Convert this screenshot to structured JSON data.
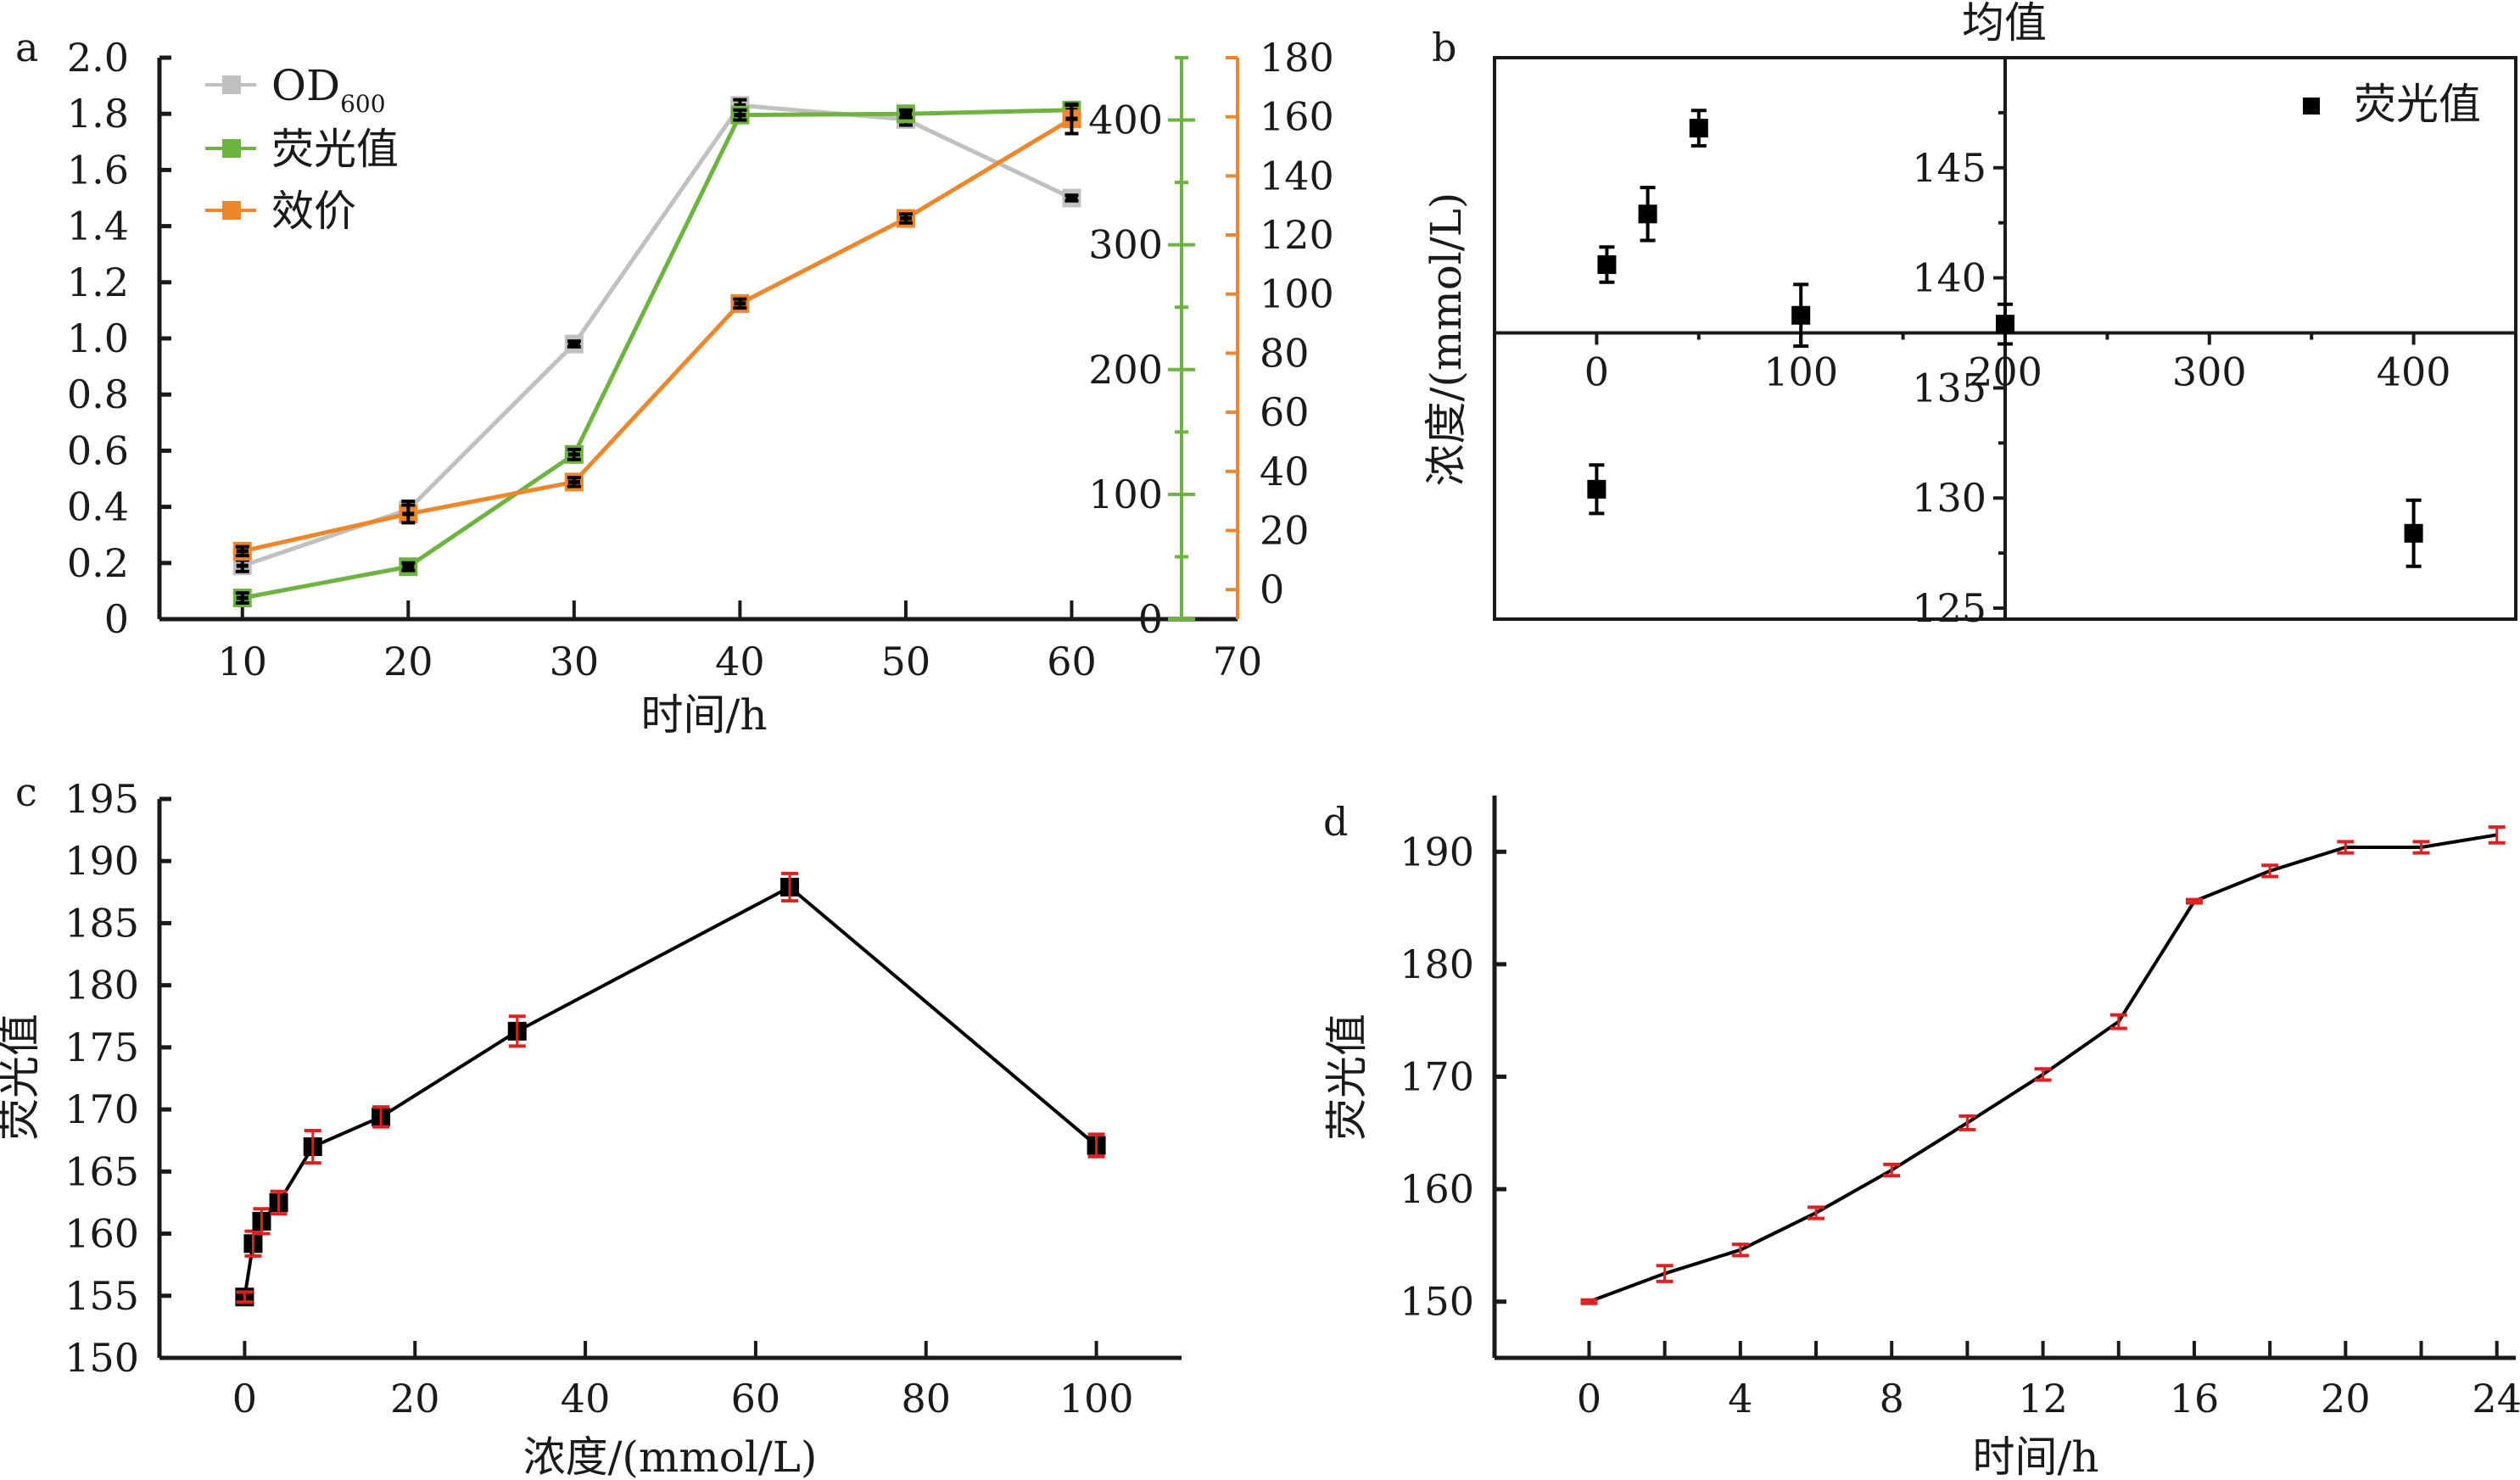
{
  "figure": {
    "panels": [
      "a",
      "b",
      "c",
      "d"
    ]
  },
  "chart_data": [
    {
      "panel": "a",
      "type": "line",
      "title": "",
      "xlabel": "时间/h",
      "x": [
        10,
        20,
        30,
        40,
        50,
        60
      ],
      "xlim": [
        5,
        70
      ],
      "xticks": [
        "10",
        "20",
        "30",
        "40",
        "50",
        "60",
        "70"
      ],
      "grid": false,
      "legend_position": "top-left",
      "axes": {
        "left": {
          "ylim": [
            0,
            2.0
          ],
          "ticks": [
            "0",
            "0.2",
            "0.4",
            "0.6",
            "0.8",
            "1.0",
            "1.2",
            "1.4",
            "1.6",
            "1.8",
            "2.0"
          ],
          "color": "#1a1a1a"
        },
        "right_inner": {
          "ylim": [
            0,
            450
          ],
          "ticks": [
            "0",
            "100",
            "200",
            "300",
            "400"
          ],
          "minor_step": 50,
          "color": "#6db33f"
        },
        "right_outer": {
          "ylim": [
            -10,
            180
          ],
          "ticks": [
            "0",
            "20",
            "40",
            "60",
            "80",
            "100",
            "120",
            "140",
            "160",
            "180"
          ],
          "color": "#f0862a"
        }
      },
      "series": [
        {
          "name": "OD600",
          "name_main": "OD",
          "name_sub": "600",
          "axis": "left",
          "color": "#c0c0c0",
          "values": [
            0.19,
            0.39,
            0.98,
            1.83,
            1.78,
            1.5
          ],
          "errors": [
            0.02,
            0.03,
            0.01,
            0.02,
            0.02,
            0.01
          ]
        },
        {
          "name": "荧光值",
          "axis": "right_inner",
          "color": "#6db33f",
          "values": [
            17,
            42,
            132,
            404,
            405,
            408
          ],
          "errors": [
            4,
            3,
            4,
            4,
            3,
            4
          ]
        },
        {
          "name": "效价",
          "axis": "right_outer",
          "color": "#f0862a",
          "values": [
            13,
            25.6,
            36.4,
            96.8,
            125.6,
            159.3
          ],
          "errors": [
            1.5,
            3,
            1.5,
            1.5,
            1.5,
            5
          ]
        }
      ]
    },
    {
      "panel": "b",
      "type": "scatter",
      "title": "均值",
      "xlabel": "",
      "ylabel": "浓度/(mmol/L)",
      "xlim": [
        -50,
        450
      ],
      "ylim": [
        124.5,
        150
      ],
      "xticks": [
        "0",
        "100",
        "200",
        "300",
        "400"
      ],
      "yticks": [
        "125",
        "130",
        "135",
        "140",
        "145"
      ],
      "x_axis_crosses_y": 137.5,
      "y_axis_crosses_x": 200,
      "grid": false,
      "legend_position": "top-right",
      "series": [
        {
          "name": "荧光值",
          "color": "#000000",
          "x": [
            0,
            5,
            25,
            50,
            100,
            200,
            400
          ],
          "values": [
            130.4,
            140.6,
            142.9,
            146.8,
            138.3,
            137.9,
            128.4
          ],
          "errors": [
            1.1,
            0.8,
            1.2,
            0.8,
            1.4,
            0.9,
            1.5
          ]
        }
      ]
    },
    {
      "panel": "c",
      "type": "line",
      "title": "",
      "xlabel": "浓度/(mmol/L)",
      "ylabel": "荧光值",
      "xlim": [
        -10,
        110
      ],
      "ylim": [
        150,
        195
      ],
      "xticks": [
        "0",
        "20",
        "40",
        "60",
        "80",
        "100"
      ],
      "yticks": [
        "150",
        "155",
        "160",
        "165",
        "170",
        "175",
        "180",
        "185",
        "190",
        "195"
      ],
      "grid": false,
      "series": [
        {
          "name": "荧光值",
          "color": "#000000",
          "error_color": "#e02020",
          "x": [
            0,
            1,
            2,
            4,
            8,
            16,
            32,
            64,
            100
          ],
          "values": [
            154.9,
            159.2,
            161.0,
            162.5,
            167.0,
            169.4,
            176.3,
            187.9,
            167.1
          ],
          "errors": [
            0.4,
            1.0,
            1.0,
            0.9,
            1.3,
            0.8,
            1.2,
            1.1,
            0.9
          ]
        }
      ]
    },
    {
      "panel": "d",
      "type": "line",
      "title": "",
      "xlabel": "时间/h",
      "ylabel": "荧光值",
      "xlim": [
        -2.5,
        24.5
      ],
      "ylim": [
        145,
        195
      ],
      "xticks": [
        "0",
        "4",
        "8",
        "12",
        "16",
        "20",
        "24"
      ],
      "yticks": [
        "150",
        "160",
        "170",
        "180",
        "190"
      ],
      "grid": false,
      "series": [
        {
          "name": "荧光值",
          "color": "#000000",
          "error_color": "#e02020",
          "x": [
            0,
            2,
            4,
            6,
            8,
            10,
            12,
            14,
            16,
            18,
            20,
            22,
            24
          ],
          "values": [
            150.0,
            152.5,
            154.6,
            157.9,
            161.7,
            165.9,
            170.2,
            174.9,
            185.6,
            188.3,
            190.4,
            190.4,
            191.5
          ],
          "errors": [
            0.1,
            0.7,
            0.5,
            0.5,
            0.5,
            0.6,
            0.5,
            0.6,
            0.1,
            0.5,
            0.5,
            0.5,
            0.7
          ]
        }
      ]
    }
  ]
}
